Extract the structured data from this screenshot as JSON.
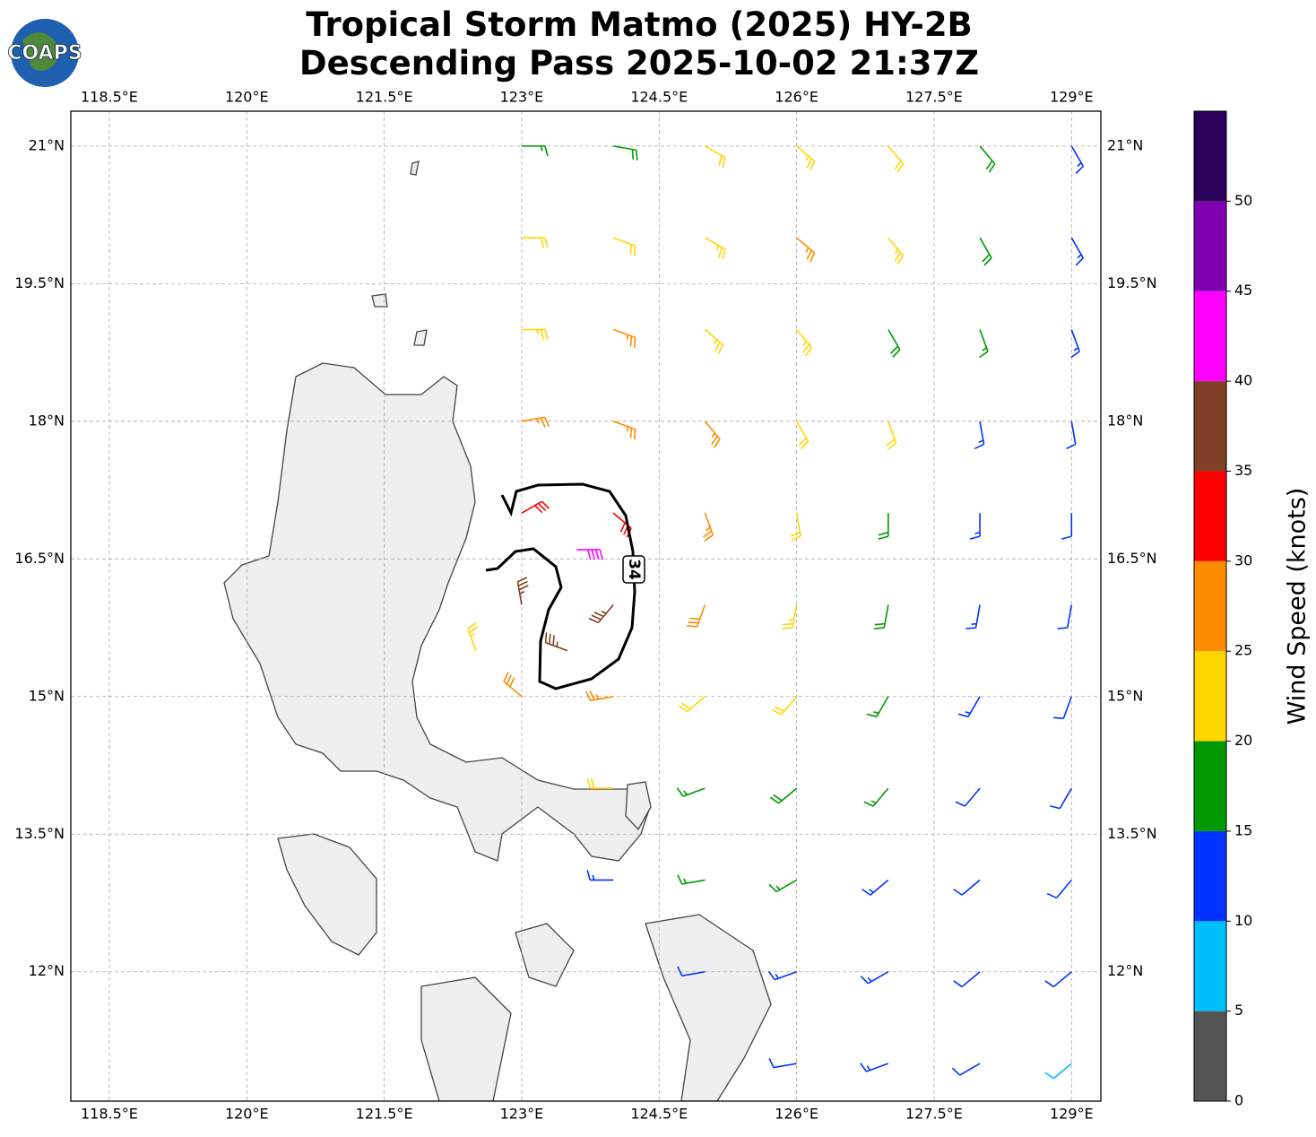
{
  "logo": "COAPS",
  "title": [
    "Tropical Storm Matmo (2025) HY-2B",
    "Descending Pass 2025-10-02 21:37Z"
  ],
  "map": {
    "xlim": [
      118.08,
      129.32
    ],
    "ylim": [
      10.59,
      21.38
    ],
    "grid": true,
    "xticks": [
      {
        "value": 118.5,
        "label": "118.5°E"
      },
      {
        "value": 120,
        "label": "120°E"
      },
      {
        "value": 121.5,
        "label": "121.5°E"
      },
      {
        "value": 123,
        "label": "123°E"
      },
      {
        "value": 124.5,
        "label": "124.5°E"
      },
      {
        "value": 126,
        "label": "126°E"
      },
      {
        "value": 127.5,
        "label": "127.5°E"
      },
      {
        "value": 129,
        "label": "129°E"
      }
    ],
    "yticks": [
      {
        "value": 12,
        "label": "12°N"
      },
      {
        "value": 13.5,
        "label": "13.5°N"
      },
      {
        "value": 15,
        "label": "15°N"
      },
      {
        "value": 16.5,
        "label": "16.5°N"
      },
      {
        "value": 18,
        "label": "18°N"
      },
      {
        "value": 19.5,
        "label": "19.5°N"
      },
      {
        "value": 21,
        "label": "21°N"
      }
    ]
  },
  "contour_label": "34",
  "colorbar": {
    "label": "Wind Speed (knots)",
    "lim": [
      0,
      55
    ],
    "bounds": [
      0,
      5,
      10,
      15,
      20,
      25,
      30,
      35,
      40,
      45,
      50,
      55
    ],
    "colors": [
      "#555555",
      "#00bfff",
      "#0033ff",
      "#009900",
      "#ffd700",
      "#ff8c00",
      "#ff0000",
      "#7f3f26",
      "#ff00ff",
      "#8000b0",
      "#2a005a"
    ],
    "ticks": [
      0,
      5,
      10,
      15,
      20,
      25,
      30,
      35,
      40,
      45,
      50
    ]
  },
  "barbs": {
    "lon": [
      123,
      124,
      125,
      126,
      127,
      128,
      129,
      123,
      124,
      125,
      126,
      127,
      128,
      129,
      123,
      124,
      125,
      126,
      127,
      128,
      129,
      123,
      124,
      125,
      126,
      127,
      128,
      129,
      123,
      124,
      125,
      126,
      127,
      128,
      129,
      123,
      124,
      125,
      126,
      127,
      128,
      129,
      123,
      124,
      125,
      126,
      127,
      128,
      129,
      124,
      125,
      126,
      127,
      128,
      129,
      124,
      125,
      126,
      127,
      128,
      129,
      125,
      126,
      127,
      128,
      129,
      126,
      127,
      128,
      129,
      123.6,
      122.5,
      123.5
    ],
    "lat": [
      21,
      21,
      21,
      21,
      21,
      21,
      21,
      20,
      20,
      20,
      20,
      20,
      20,
      20,
      19,
      19,
      19,
      19,
      19,
      19,
      19,
      18,
      18,
      18,
      18,
      18,
      18,
      18,
      17,
      17,
      17,
      17,
      17,
      17,
      17,
      16,
      16,
      16,
      16,
      16,
      16,
      16,
      15,
      15,
      15,
      15,
      15,
      15,
      15,
      14,
      14,
      14,
      14,
      14,
      14,
      13,
      13,
      13,
      13,
      13,
      13,
      12,
      12,
      12,
      12,
      12,
      11,
      11,
      11,
      11,
      16.6,
      15.5,
      15.5
    ],
    "speed": [
      17,
      18,
      22,
      23,
      22,
      18,
      13,
      22,
      22,
      24,
      27,
      24,
      19,
      13,
      23,
      25,
      24,
      23,
      19,
      17,
      13,
      27,
      27,
      26,
      22,
      20,
      14,
      12,
      32,
      31,
      25,
      22,
      18,
      14,
      12,
      36,
      37,
      28,
      23,
      18,
      13,
      12,
      28,
      25,
      22,
      21,
      16,
      13,
      12,
      22,
      17,
      19,
      16,
      12,
      11,
      13,
      16,
      16,
      13,
      12,
      11,
      12,
      13,
      13,
      12,
      11,
      12,
      13,
      10,
      9,
      42,
      24,
      37
    ],
    "direction": [
      90,
      100,
      120,
      130,
      140,
      140,
      150,
      90,
      110,
      120,
      130,
      140,
      150,
      150,
      90,
      110,
      130,
      140,
      150,
      160,
      160,
      80,
      110,
      140,
      150,
      160,
      170,
      170,
      60,
      130,
      160,
      170,
      180,
      180,
      180,
      350,
      220,
      200,
      190,
      190,
      190,
      190,
      310,
      260,
      230,
      220,
      210,
      210,
      200,
      270,
      250,
      230,
      220,
      220,
      210,
      270,
      260,
      240,
      230,
      230,
      220,
      260,
      250,
      240,
      230,
      230,
      260,
      250,
      240,
      230,
      90,
      340,
      290
    ]
  }
}
